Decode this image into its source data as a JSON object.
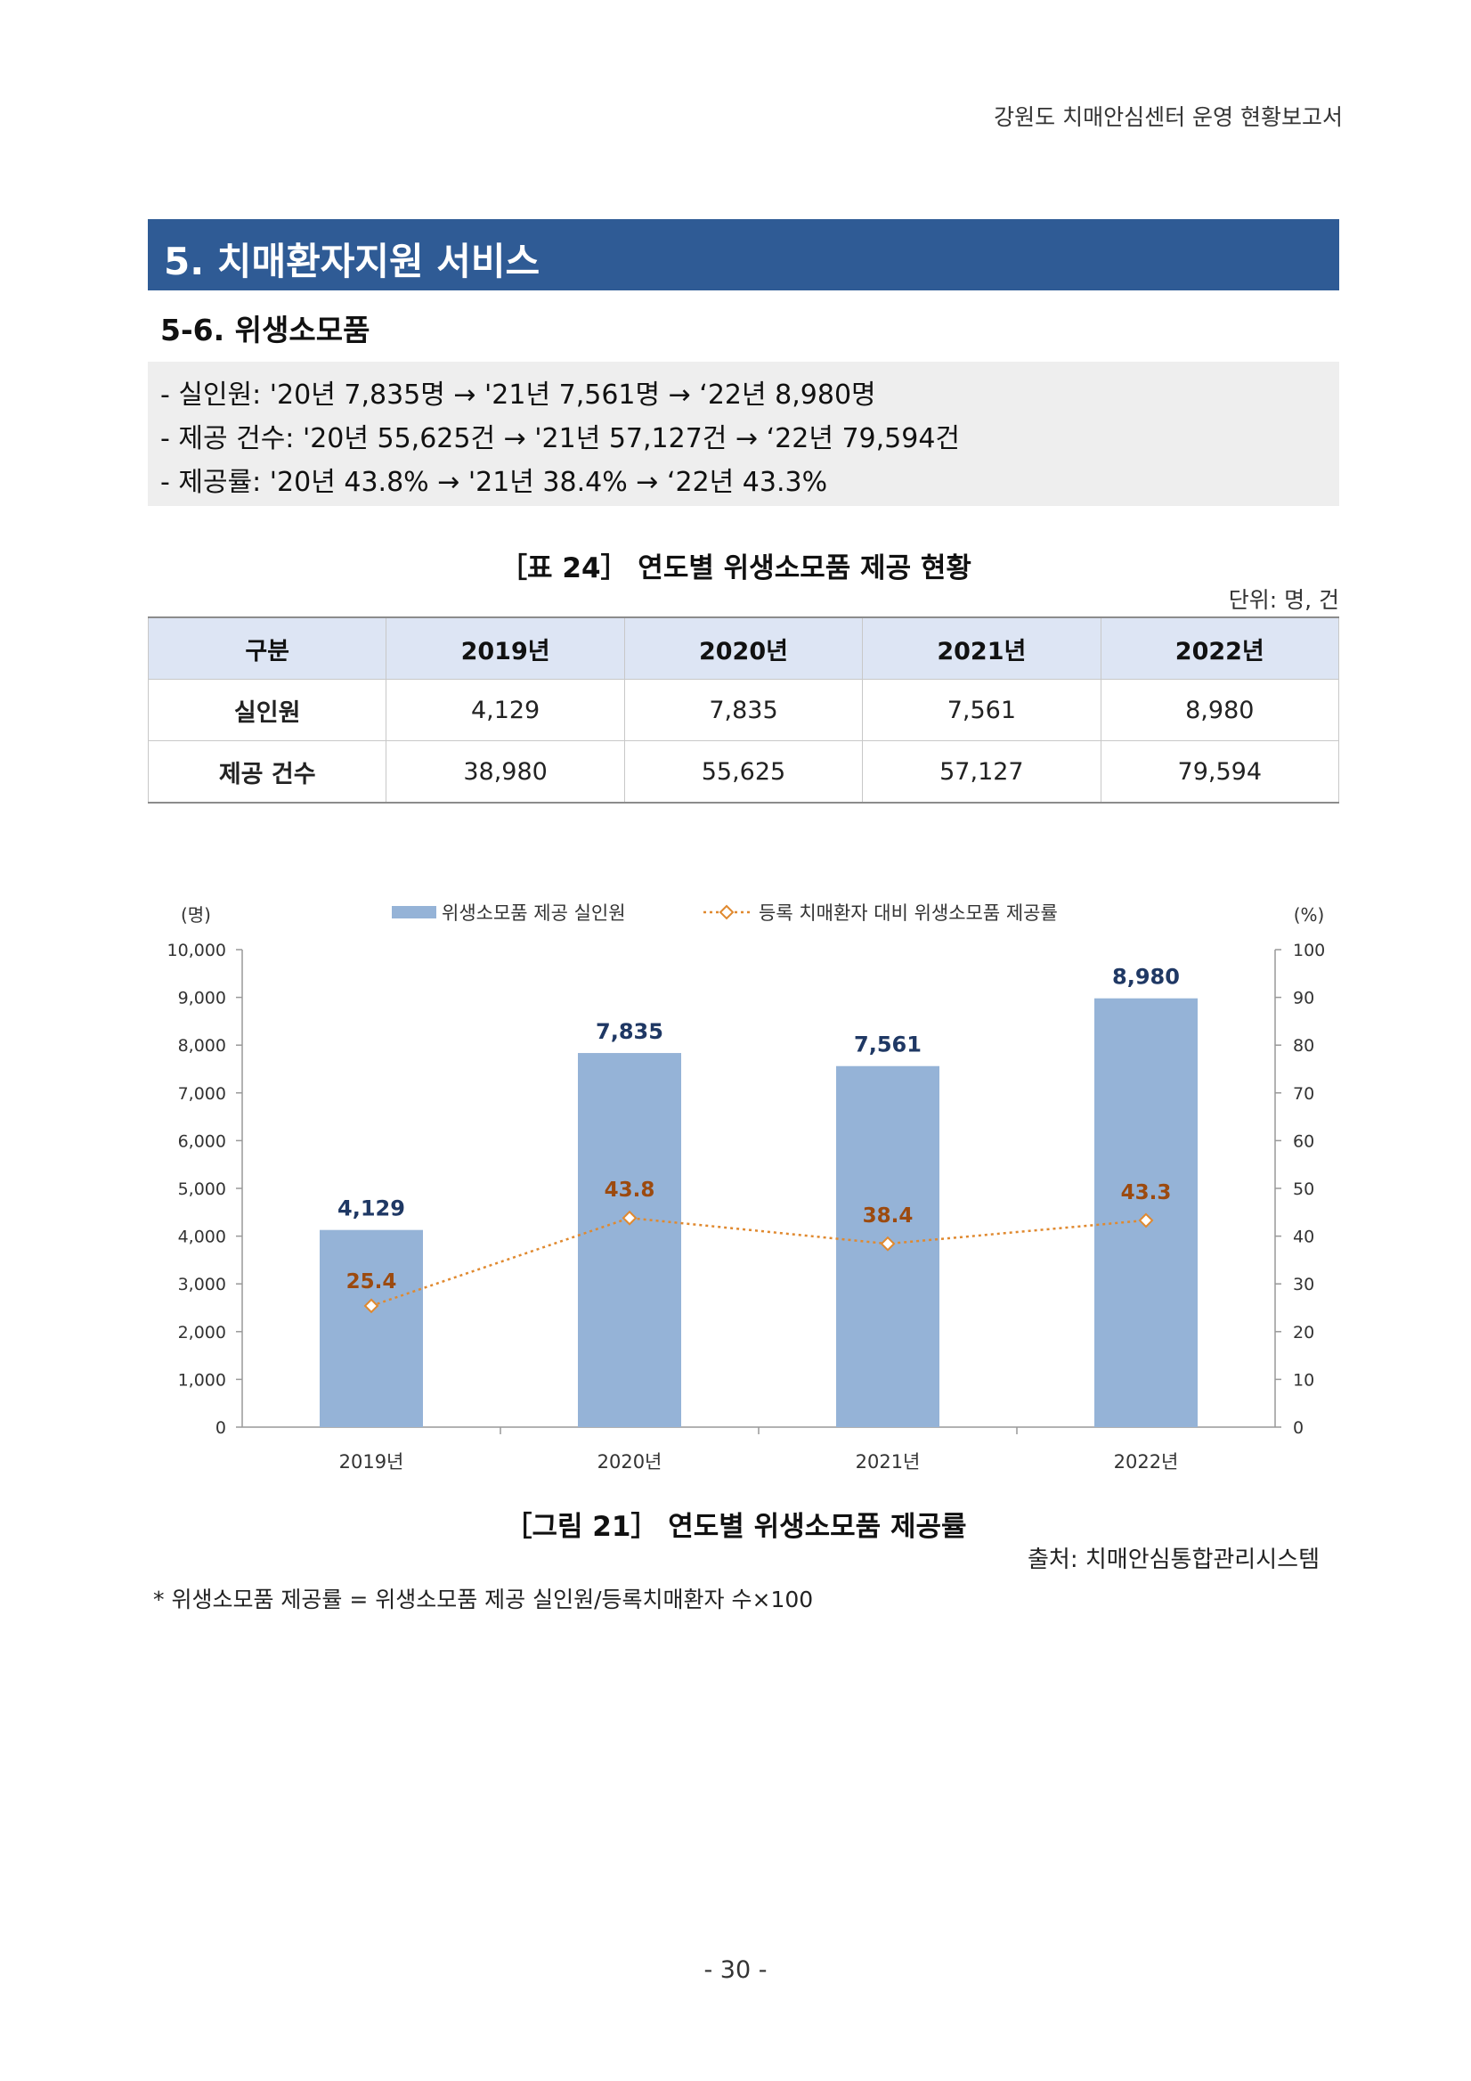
{
  "header": {
    "running_title": "강원도 치매안심센터 운영 현황보고서"
  },
  "section": {
    "title": "5. 치매환자지원 서비스",
    "subtitle": "5-6. 위생소모품"
  },
  "summary": [
    "- 실인원: '20년 7,835명 → '21년 7,561명 → ‘22년 8,980명",
    "- 제공 건수: '20년 55,625건 → '21년 57,127건 → ‘22년 79,594건",
    "- 제공률: '20년 43.8% → '21년 38.4% → ‘22년 43.3%"
  ],
  "table": {
    "caption": "［표 24］ 연도별 위생소모품 제공 현황",
    "unit": "단위: 명, 건",
    "headers": [
      "구분",
      "2019년",
      "2020년",
      "2021년",
      "2022년"
    ],
    "rows": [
      {
        "label": "실인원",
        "values": [
          "4,129",
          "7,835",
          "7,561",
          "8,980"
        ]
      },
      {
        "label": "제공 건수",
        "values": [
          "38,980",
          "55,625",
          "57,127",
          "79,594"
        ]
      }
    ]
  },
  "colors": {
    "section_bar": "#2f5b95",
    "header_fill": "#dde5f4",
    "bar": "#95b3d7",
    "line": "#e0892f",
    "value_label": "#1f3864",
    "rate_label": "#9c4a0f"
  },
  "chart_data": {
    "type": "bar",
    "categories": [
      "2019년",
      "2020년",
      "2021년",
      "2022년"
    ],
    "series": [
      {
        "name": "위생소모품 제공 실인원",
        "type": "bar",
        "axis": "left",
        "values": [
          4129,
          7835,
          7561,
          8980
        ],
        "labels": [
          "4,129",
          "7,835",
          "7,561",
          "8,980"
        ]
      },
      {
        "name": "등록 치매환자 대비 위생소모품 제공률",
        "type": "line",
        "axis": "right",
        "values": [
          25.4,
          43.8,
          38.4,
          43.3
        ],
        "labels": [
          "25.4",
          "43.8",
          "38.4",
          "43.3"
        ]
      }
    ],
    "y_left": {
      "label": "(명)",
      "min": 0,
      "max": 10000,
      "ticks": [
        "0",
        "1,000",
        "2,000",
        "3,000",
        "4,000",
        "5,000",
        "6,000",
        "7,000",
        "8,000",
        "9,000",
        "10,000"
      ]
    },
    "y_right": {
      "label": "(%)",
      "min": 0,
      "max": 100,
      "ticks": [
        "0",
        "10",
        "20",
        "30",
        "40",
        "50",
        "60",
        "70",
        "80",
        "90",
        "100"
      ]
    },
    "grid": false,
    "legend_position": "top"
  },
  "figure": {
    "caption": "［그림 21］ 연도별 위생소모품 제공률"
  },
  "source": "출처: 치매안심통합관리시스템",
  "footnote": "* 위생소모품 제공률 = 위생소모품 제공 실인원/등록치매환자 수×100",
  "page_number": "- 30 -"
}
